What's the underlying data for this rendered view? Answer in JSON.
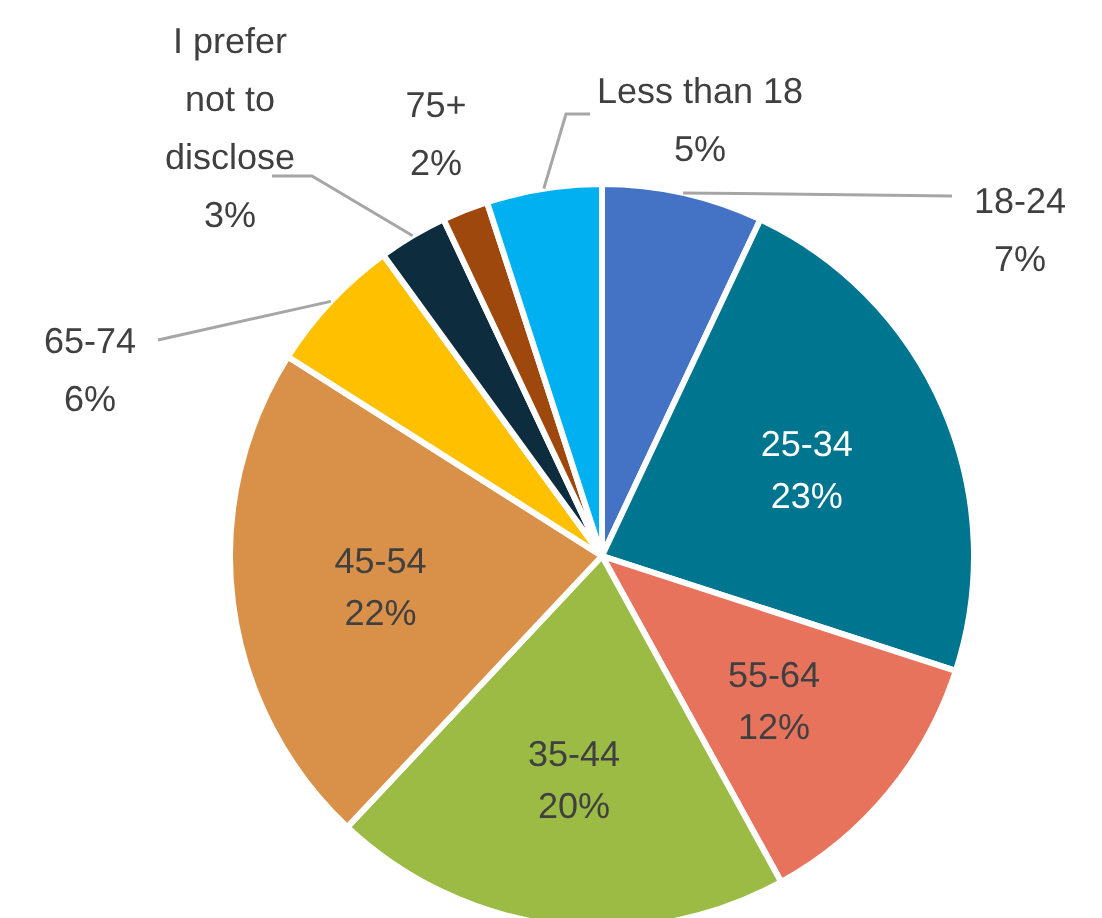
{
  "chart_data": {
    "type": "pie",
    "categories": [
      "18-24",
      "25-34",
      "55-64",
      "35-44",
      "45-54",
      "65-74",
      "I prefer not to disclose",
      "75+",
      "Less than 18"
    ],
    "values": [
      7,
      23,
      12,
      20,
      22,
      6,
      3,
      2,
      5
    ],
    "value_labels": [
      "7%",
      "23%",
      "12%",
      "20%",
      "22%",
      "6%",
      "3%",
      "2%",
      "5%"
    ],
    "colors": [
      "#4472c4",
      "#00758f",
      "#e8735c",
      "#9bbb45",
      "#d9914a",
      "#ffc000",
      "#0d2d3e",
      "#9e480e",
      "#00b0f0"
    ]
  }
}
